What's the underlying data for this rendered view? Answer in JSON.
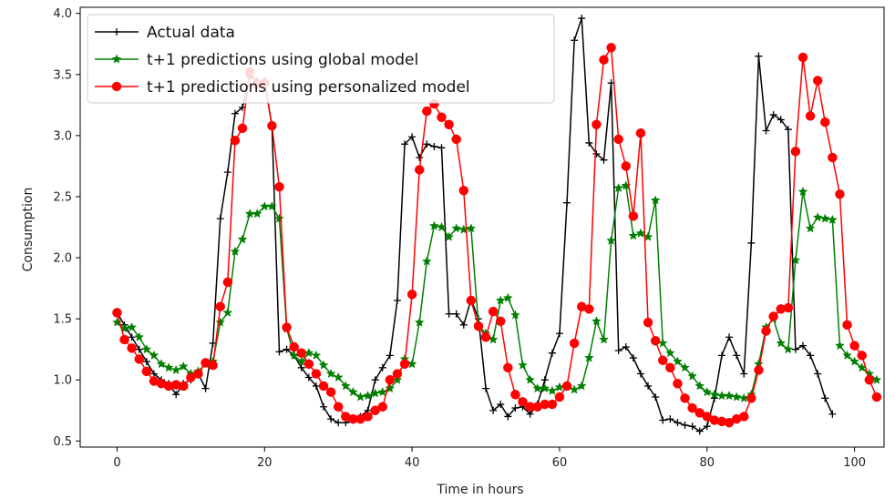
{
  "chart_data": {
    "type": "line",
    "title": "",
    "xlabel": "Time in hours",
    "ylabel": "Consumption",
    "xlim": [
      -5,
      104
    ],
    "ylim": [
      0.45,
      4.05
    ],
    "xticks": [
      0,
      20,
      40,
      60,
      80,
      100
    ],
    "yticks": [
      0.5,
      1.0,
      1.5,
      2.0,
      2.5,
      3.0,
      3.5,
      4.0
    ],
    "xtick_labels": [
      "0",
      "20",
      "40",
      "60",
      "80",
      "100"
    ],
    "ytick_labels": [
      "0.5",
      "1.0",
      "1.5",
      "2.0",
      "2.5",
      "3.0",
      "3.5",
      "4.0"
    ],
    "grid": false,
    "legend_position": "upper-left",
    "series": [
      {
        "name": "Actual data",
        "color": "#000000",
        "marker": "plus",
        "values": [
          1.55,
          1.45,
          1.35,
          1.25,
          1.15,
          1.05,
          1.0,
          0.97,
          0.88,
          0.97,
          1.0,
          1.05,
          0.93,
          1.3,
          2.32,
          2.7,
          3.18,
          3.23,
          3.48,
          3.45,
          3.45,
          3.08,
          1.23,
          1.25,
          1.2,
          1.1,
          1.02,
          0.95,
          0.78,
          0.68,
          0.65,
          0.65,
          0.67,
          0.7,
          0.75,
          1.0,
          1.1,
          1.2,
          1.65,
          2.93,
          2.99,
          2.82,
          2.93,
          2.91,
          2.9,
          1.54,
          1.54,
          1.45,
          1.66,
          1.5,
          0.93,
          0.75,
          0.8,
          0.7,
          0.77,
          0.78,
          0.72,
          0.8,
          1.0,
          1.22,
          1.38,
          2.45,
          3.78,
          3.96,
          2.94,
          2.85,
          2.8,
          3.43,
          1.24,
          1.27,
          1.18,
          1.05,
          0.95,
          0.86,
          0.67,
          0.68,
          0.65,
          0.63,
          0.62,
          0.58,
          0.62,
          0.85,
          1.2,
          1.35,
          1.2,
          1.05,
          2.12,
          3.65,
          3.04,
          3.17,
          3.13,
          3.05,
          1.25,
          1.28,
          1.2,
          1.05,
          0.85,
          0.72
        ]
      },
      {
        "name": "t+1 predictions using global model",
        "color": "#008000",
        "marker": "star",
        "values": [
          1.47,
          1.42,
          1.43,
          1.35,
          1.25,
          1.2,
          1.13,
          1.1,
          1.08,
          1.11,
          1.05,
          1.07,
          1.13,
          1.15,
          1.47,
          1.55,
          2.05,
          2.15,
          2.36,
          2.36,
          2.42,
          2.42,
          2.32,
          1.42,
          1.2,
          1.15,
          1.22,
          1.2,
          1.12,
          1.05,
          1.02,
          0.95,
          0.9,
          0.86,
          0.87,
          0.89,
          0.9,
          0.93,
          1.0,
          1.17,
          1.13,
          1.47,
          1.97,
          2.26,
          2.25,
          2.17,
          2.24,
          2.23,
          2.24,
          1.45,
          1.38,
          1.33,
          1.65,
          1.67,
          1.53,
          1.12,
          1.0,
          0.93,
          0.93,
          0.91,
          0.94,
          0.95,
          0.92,
          0.95,
          1.18,
          1.48,
          1.33,
          2.14,
          2.57,
          2.59,
          2.18,
          2.2,
          2.17,
          2.47,
          1.3,
          1.22,
          1.15,
          1.1,
          1.03,
          0.95,
          0.9,
          0.88,
          0.87,
          0.87,
          0.86,
          0.85,
          0.88,
          1.13,
          1.43,
          1.5,
          1.3,
          1.25,
          1.98,
          2.54,
          2.24,
          2.33,
          2.32,
          2.31,
          1.28,
          1.2,
          1.15,
          1.1,
          1.05,
          1.0
        ]
      },
      {
        "name": "t+1 predictions using personalized model",
        "color": "#ff0000",
        "marker": "circle",
        "values": [
          1.55,
          1.33,
          1.26,
          1.17,
          1.07,
          0.99,
          0.97,
          0.95,
          0.96,
          0.95,
          1.02,
          1.05,
          1.14,
          1.12,
          1.6,
          1.8,
          2.96,
          3.06,
          3.52,
          3.42,
          3.43,
          3.08,
          2.58,
          1.43,
          1.27,
          1.22,
          1.13,
          1.05,
          0.95,
          0.9,
          0.78,
          0.7,
          0.68,
          0.68,
          0.7,
          0.75,
          0.78,
          1.0,
          1.05,
          1.13,
          1.7,
          2.72,
          3.2,
          3.26,
          3.15,
          3.09,
          2.97,
          2.55,
          1.65,
          1.44,
          1.35,
          1.56,
          1.48,
          1.1,
          0.88,
          0.82,
          0.78,
          0.78,
          0.8,
          0.8,
          0.86,
          0.95,
          1.3,
          1.6,
          1.58,
          3.09,
          3.62,
          3.72,
          2.97,
          2.75,
          2.34,
          3.02,
          1.47,
          1.32,
          1.16,
          1.1,
          0.97,
          0.85,
          0.77,
          0.73,
          0.7,
          0.67,
          0.66,
          0.65,
          0.68,
          0.7,
          0.85,
          1.08,
          1.4,
          1.52,
          1.58,
          1.59,
          2.87,
          3.64,
          3.16,
          3.45,
          3.11,
          2.82,
          2.52,
          1.45,
          1.28,
          1.2,
          1.0,
          0.86
        ]
      }
    ]
  }
}
